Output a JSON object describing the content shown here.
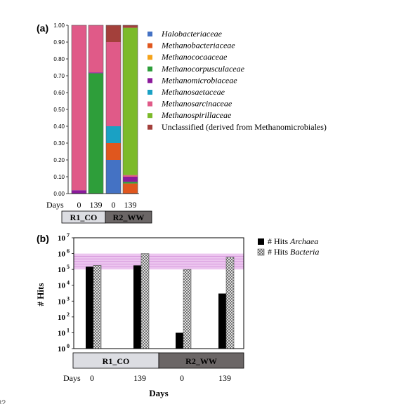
{
  "chart_data": [
    {
      "type": "bar",
      "panel_label": "(a)",
      "stacked": true,
      "x_prefix": "Days",
      "categories": [
        "0",
        "139",
        "0",
        "139"
      ],
      "groups": [
        {
          "label": "R1_CO",
          "fill": "#dcdde2"
        },
        {
          "label": "R2_WW",
          "fill": "#6b6666"
        }
      ],
      "ylim": [
        0,
        1
      ],
      "yticks": [
        "0.00",
        "0.10",
        "0.20",
        "0.30",
        "0.40",
        "0.50",
        "0.60",
        "0.70",
        "0.80",
        "0.90",
        "1.00"
      ],
      "series": [
        {
          "name": "Halobacteriaceae",
          "color": "#4472c4",
          "values": [
            0,
            0,
            0.2,
            0
          ]
        },
        {
          "name": "Methanobacteriaceae",
          "color": "#e0571e",
          "values": [
            0,
            0,
            0.1,
            0.06
          ]
        },
        {
          "name": "Methanococaaceae",
          "color": "#f5a31a",
          "values": [
            0,
            0,
            0,
            0
          ]
        },
        {
          "name": "Methanocorpusculaceae",
          "color": "#2e9e3a",
          "values": [
            0,
            0.715,
            0,
            0.01
          ]
        },
        {
          "name": "Methanomicrobiaceae",
          "color": "#8b1a9b",
          "values": [
            0.02,
            0.005,
            0,
            0.03
          ]
        },
        {
          "name": "Methanosaetaceae",
          "color": "#1aa1c4",
          "values": [
            0,
            0,
            0.1,
            0
          ]
        },
        {
          "name": "Methanosarcinaceae",
          "color": "#e05a88",
          "values": [
            0.98,
            0.28,
            0.5,
            0.01
          ]
        },
        {
          "name": "Methanospirillaceae",
          "color": "#7cba2a",
          "values": [
            0,
            0,
            0,
            0.875
          ]
        },
        {
          "name": "Unclassified (derived from Methanomicrobiales)",
          "color": "#a3403b",
          "values": [
            0,
            0,
            0.1,
            0.015
          ]
        }
      ]
    },
    {
      "type": "bar",
      "panel_label": "(b)",
      "ylabel": "# Hits",
      "xlabel": "Days",
      "x_prefix": "Days",
      "yscale": "log",
      "ylim": [
        1,
        10000000
      ],
      "yticks": [
        {
          "base": "10",
          "exp": "0"
        },
        {
          "base": "10",
          "exp": "1"
        },
        {
          "base": "10",
          "exp": "2"
        },
        {
          "base": "10",
          "exp": "3"
        },
        {
          "base": "10",
          "exp": "4"
        },
        {
          "base": "10",
          "exp": "5"
        },
        {
          "base": "10",
          "exp": "6"
        },
        {
          "base": "10",
          "exp": "7"
        }
      ],
      "categories": [
        "0",
        "139",
        "0",
        "139"
      ],
      "groups": [
        {
          "label": "R1_CO",
          "fill": "#dcdde2"
        },
        {
          "label": "R2_WW",
          "fill": "#6b6666"
        }
      ],
      "highlight_band": {
        "from": 100000,
        "to": 1000000,
        "color": "#d98be0"
      },
      "series": [
        {
          "name_prefix": "# Hits",
          "name": "Archaea",
          "color": "#000000",
          "pattern": "solid",
          "values": [
            150000,
            180000,
            10,
            3000
          ]
        },
        {
          "name_prefix": "# Hits",
          "name": "Bacteria",
          "color": "#6e6e6e",
          "pattern": "crosshatch",
          "values": [
            180000,
            1000000,
            100000,
            600000
          ]
        }
      ]
    }
  ],
  "footer_text": "82"
}
